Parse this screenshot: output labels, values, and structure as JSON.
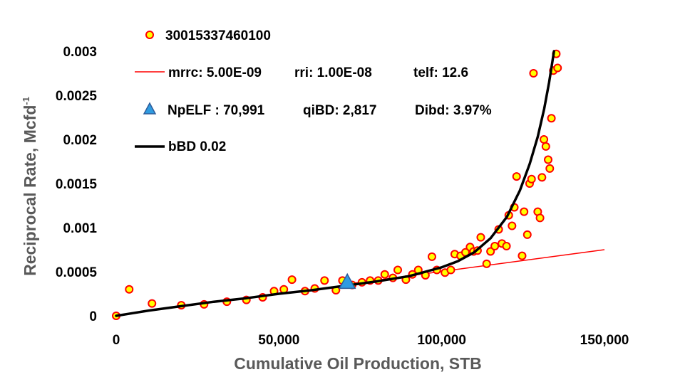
{
  "chart_data": {
    "type": "scatter",
    "xlabel": "Cumulative Oil Production, STB",
    "ylabel": "Reciprocal Rate, Mcfd",
    "ylabel_sup": "-1",
    "xlim": [
      0,
      150000
    ],
    "ylim": [
      0,
      0.003
    ],
    "x_ticks": [
      0,
      50000,
      100000,
      150000
    ],
    "x_tick_labels": [
      "0",
      "50,000",
      "100,000",
      "150,000"
    ],
    "y_ticks": [
      0,
      0.0005,
      0.001,
      0.0015,
      0.002,
      0.0025,
      0.003
    ],
    "y_tick_labels": [
      "0",
      "0.0005",
      "0.001",
      "0.0015",
      "0.002",
      "0.0025",
      "0.003"
    ],
    "grid": false,
    "legend": {
      "position": "top-left",
      "entries": [
        {
          "marker": "circle",
          "text": "30015337460100"
        },
        {
          "marker": "red-line",
          "parts": [
            "mrrc: 5.00E-09",
            "rri: 1.00E-08",
            "telf: 12.6"
          ]
        },
        {
          "marker": "triangle",
          "parts": [
            "NpELF : 70,991",
            "qiBD:  2,817",
            "Dibd: 3.97%"
          ]
        },
        {
          "marker": "black-line",
          "text": "bBD  0.02"
        }
      ]
    },
    "colors": {
      "point_fill": "#FFFF00",
      "point_stroke": "#FF0000",
      "linear_line": "#FF0000",
      "curve": "#000000",
      "triangle_fill": "#2F9BE0",
      "triangle_stroke": "#2E5C9A",
      "axis_title": "#595959"
    },
    "series": [
      {
        "name": "30015337460100",
        "kind": "points",
        "points": [
          [
            0,
            0
          ],
          [
            4000,
            0.0003
          ],
          [
            11000,
            0.00014
          ],
          [
            20000,
            0.00012
          ],
          [
            27000,
            0.00013
          ],
          [
            34000,
            0.00016
          ],
          [
            40000,
            0.00018
          ],
          [
            45000,
            0.00021
          ],
          [
            48500,
            0.00028
          ],
          [
            51500,
            0.0003
          ],
          [
            54000,
            0.00041
          ],
          [
            58000,
            0.00028
          ],
          [
            61000,
            0.00031
          ],
          [
            64000,
            0.0004
          ],
          [
            67500,
            0.00029
          ],
          [
            69500,
            0.0004
          ],
          [
            72500,
            0.00035
          ],
          [
            75500,
            0.00038
          ],
          [
            78000,
            0.0004
          ],
          [
            80500,
            0.0004
          ],
          [
            82500,
            0.00047
          ],
          [
            85000,
            0.00043
          ],
          [
            86500,
            0.00052
          ],
          [
            89000,
            0.00041
          ],
          [
            91000,
            0.00047
          ],
          [
            92800,
            0.00052
          ],
          [
            95000,
            0.00046
          ],
          [
            97000,
            0.00067
          ],
          [
            98500,
            0.00052
          ],
          [
            101000,
            0.00049
          ],
          [
            102800,
            0.00052
          ],
          [
            104000,
            0.0007
          ],
          [
            105800,
            0.00068
          ],
          [
            107300,
            0.00072
          ],
          [
            108700,
            0.00078
          ],
          [
            109800,
            0.00073
          ],
          [
            111000,
            0.00074
          ],
          [
            112000,
            0.00089
          ],
          [
            113800,
            0.00059
          ],
          [
            115000,
            0.00073
          ],
          [
            116300,
            0.00079
          ],
          [
            117500,
            0.00098
          ],
          [
            118500,
            0.00082
          ],
          [
            119900,
            0.00079
          ],
          [
            120600,
            0.00114
          ],
          [
            121600,
            0.00102
          ],
          [
            122300,
            0.00123
          ],
          [
            123000,
            0.00158
          ],
          [
            124700,
            0.00068
          ],
          [
            125300,
            0.00118
          ],
          [
            126300,
            0.00092
          ],
          [
            127000,
            0.0015
          ],
          [
            127600,
            0.00155
          ],
          [
            128200,
            0.00275
          ],
          [
            129500,
            0.00118
          ],
          [
            130200,
            0.00111
          ],
          [
            130800,
            0.00157
          ],
          [
            131400,
            0.002
          ],
          [
            132000,
            0.00192
          ],
          [
            132700,
            0.00177
          ],
          [
            133200,
            0.00167
          ],
          [
            133700,
            0.00224
          ],
          [
            134300,
            0.00278
          ],
          [
            135200,
            0.00297
          ],
          [
            135600,
            0.00281
          ]
        ]
      },
      {
        "name": "mrrc: 5.00E-09",
        "kind": "line",
        "points": [
          [
            70991,
            0.00036
          ],
          [
            150000,
            0.00075
          ]
        ]
      },
      {
        "name": "NpELF : 70,991",
        "kind": "marker",
        "points": [
          [
            70991,
            0.00036
          ]
        ]
      },
      {
        "name": "bBD  0.02",
        "kind": "curve",
        "points": [
          [
            0,
            0
          ],
          [
            5000,
            3e-05
          ],
          [
            10000,
            6e-05
          ],
          [
            20000,
            0.00011
          ],
          [
            30000,
            0.00016
          ],
          [
            40000,
            0.0002
          ],
          [
            50000,
            0.00025
          ],
          [
            60000,
            0.00029
          ],
          [
            70000,
            0.00034
          ],
          [
            80000,
            0.00039
          ],
          [
            90000,
            0.00045
          ],
          [
            100000,
            0.00055
          ],
          [
            105000,
            0.00062
          ],
          [
            110000,
            0.00072
          ],
          [
            115000,
            0.00088
          ],
          [
            120000,
            0.00112
          ],
          [
            124000,
            0.00142
          ],
          [
            127000,
            0.00172
          ],
          [
            129500,
            0.00203
          ],
          [
            131500,
            0.00235
          ],
          [
            133000,
            0.00265
          ],
          [
            134000,
            0.00288
          ],
          [
            134500,
            0.003
          ]
        ]
      }
    ]
  }
}
